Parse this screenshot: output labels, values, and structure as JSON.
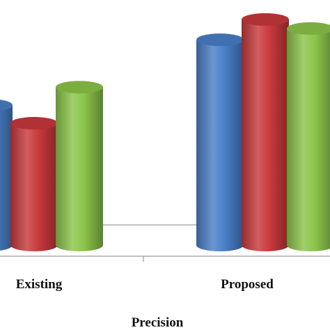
{
  "chart_data": {
    "type": "bar",
    "style": "3d-cylinder",
    "categories": [
      "Existing",
      "Proposed"
    ],
    "series": [
      {
        "color": "#4a7fc8",
        "values": [
          0.62,
          0.91
        ]
      },
      {
        "color": "#c8393c",
        "values": [
          0.54,
          1.0
        ]
      },
      {
        "color": "#8cc54a",
        "values": [
          0.7,
          0.96
        ]
      }
    ],
    "title": "",
    "xlabel": "Precision",
    "ylabel": "",
    "ylim": [
      0,
      1
    ],
    "grid": false,
    "legend": "none"
  }
}
